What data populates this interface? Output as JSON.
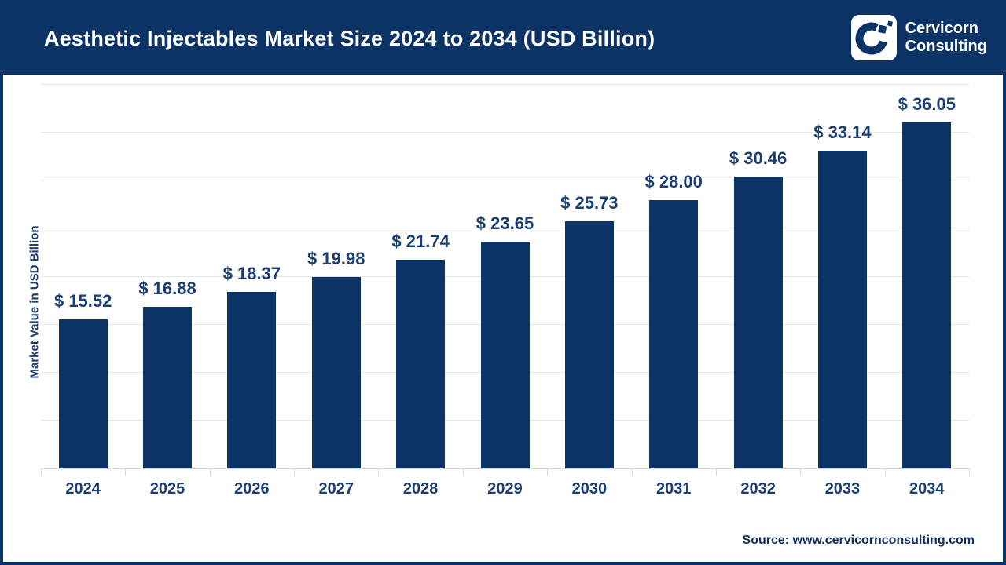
{
  "header": {
    "title": "Aesthetic Injectables Market Size 2024 to 2034 (USD Billion)",
    "logo": {
      "line1": "Cervicorn",
      "line2": "Consulting"
    }
  },
  "chart_data": {
    "type": "bar",
    "title": "Aesthetic Injectables Market Size 2024 to 2034 (USD Billion)",
    "categories": [
      "2024",
      "2025",
      "2026",
      "2027",
      "2028",
      "2029",
      "2030",
      "2031",
      "2032",
      "2033",
      "2034"
    ],
    "values": [
      15.52,
      16.88,
      18.37,
      19.98,
      21.74,
      23.65,
      25.73,
      28.0,
      30.46,
      33.14,
      36.05
    ],
    "value_prefix": "$ ",
    "xlabel": "",
    "ylabel": "Market Value in USD Billion",
    "ylim": [
      0,
      40
    ],
    "gridline_step": 5,
    "grid": true,
    "legend": "none",
    "bar_color": "#0b3366",
    "label_color": "#1a3f70"
  },
  "footer": {
    "source": "Source: www.cervicornconsulting.com"
  },
  "colors": {
    "navy": "#0b3366",
    "gridline": "#e7e7e7",
    "axis": "#d9d9d9",
    "background": "#ffffff"
  }
}
